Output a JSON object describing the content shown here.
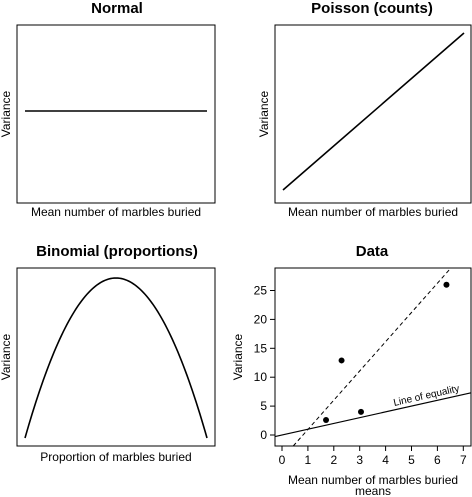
{
  "chart_data": [
    {
      "type": "line",
      "title": "Normal",
      "xlabel": "Mean number of marbles buried",
      "ylabel": "Variance",
      "axes_ticks": false,
      "curve": "constant"
    },
    {
      "type": "line",
      "title": "Poisson (counts)",
      "xlabel": "Mean number of marbles buried",
      "ylabel": "Variance",
      "axes_ticks": false,
      "curve": "identity"
    },
    {
      "type": "line",
      "title": "Binomial (proportions)",
      "xlabel": "Proportion of marbles buried",
      "ylabel": "Variance",
      "axes_ticks": false,
      "curve": "p(1-p)"
    },
    {
      "type": "scatter",
      "title": "Data",
      "xlabel": "Mean number of marbles buried",
      "xlabel2": "means",
      "ylabel": "Variance",
      "xlim": [
        0,
        7
      ],
      "ylim": [
        -1,
        28
      ],
      "x_ticks": [
        0,
        1,
        2,
        3,
        4,
        5,
        6,
        7
      ],
      "y_ticks": [
        0,
        5,
        10,
        15,
        20,
        25
      ],
      "points": [
        {
          "x": 1.7,
          "y": 2.6
        },
        {
          "x": 2.3,
          "y": 12.9
        },
        {
          "x": 3.05,
          "y": 4.0
        },
        {
          "x": 6.35,
          "y": 26.0
        }
      ],
      "equality_line": {
        "label": "Line of equality",
        "slope": 1,
        "intercept": 0
      },
      "fit_line": {
        "style": "dashed",
        "slope": 5.06,
        "intercept": -4.1
      }
    }
  ]
}
